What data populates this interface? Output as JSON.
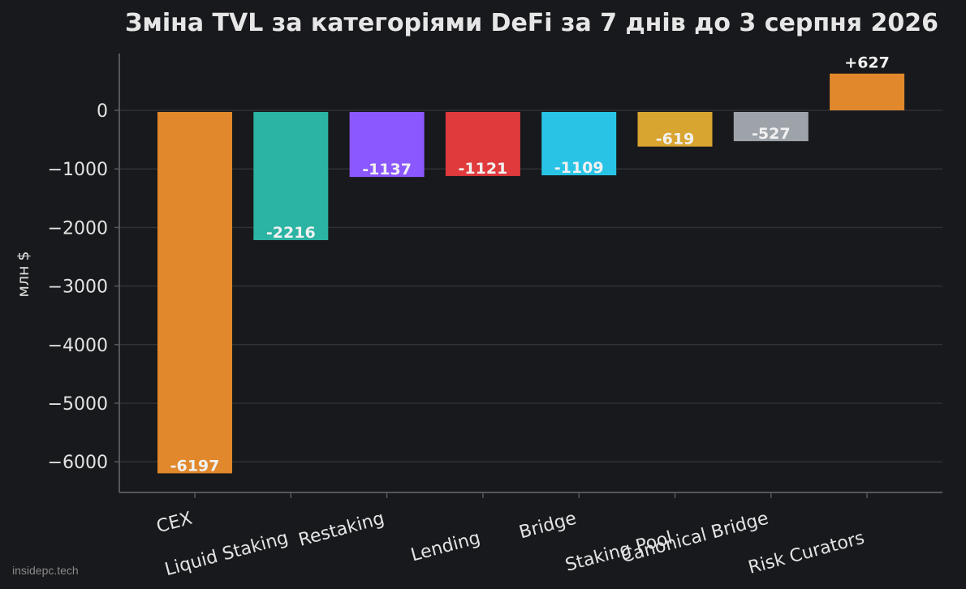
{
  "colors": {
    "background": "#18191c",
    "grid": "#303135",
    "axis": "#55575c",
    "text": "#e3e3e3"
  },
  "watermark": "insidepc.tech",
  "chart_data": {
    "type": "bar",
    "title": "Зміна TVL за категоріями DeFi за 7 днів до 3 серпня 2026",
    "xlabel": "",
    "ylabel": "млн $",
    "ylim": [
      -6500,
      1000
    ],
    "yticks": [
      0,
      -1000,
      -2000,
      -3000,
      -4000,
      -5000,
      -6000
    ],
    "ytick_labels": [
      "0",
      "−1000",
      "−2000",
      "−3000",
      "−4000",
      "−5000",
      "−6000"
    ],
    "grid": true,
    "categories": [
      "CEX",
      "Liquid Staking",
      "Restaking",
      "Lending",
      "Bridge",
      "Staking Pool",
      "Canonical Bridge",
      "Risk Curators"
    ],
    "values": [
      -6197,
      -2216,
      -1137,
      -1121,
      -1109,
      -619,
      -527,
      627
    ],
    "data_labels": [
      "-6197",
      "-2216",
      "-1137",
      "-1121",
      "-1109",
      "-619",
      "-527",
      "+627"
    ],
    "bar_colors": [
      "#e0882b",
      "#2bb3a3",
      "#8b57ff",
      "#e03a3c",
      "#29c3e6",
      "#d9a531",
      "#9ea3aa",
      "#e0882b"
    ]
  }
}
